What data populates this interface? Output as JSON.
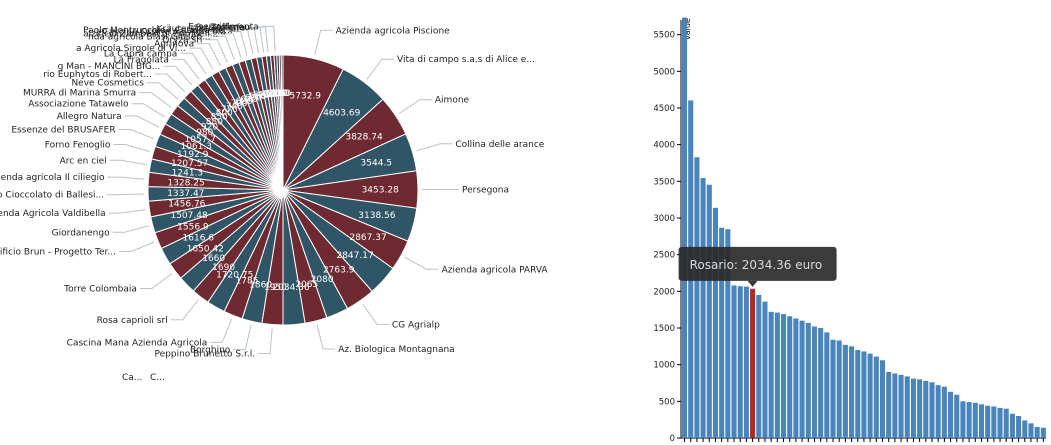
{
  "chart_data": [
    {
      "type": "pie",
      "title": "",
      "colors": [
        "#6e2a30",
        "#2f5566"
      ],
      "slices": [
        {
          "label": "Azienda agricola Piscione",
          "value": 5732.9
        },
        {
          "label": "Vita di campo s.a.s di Alice e...",
          "value": 4603.69
        },
        {
          "label": "Aimone",
          "value": 3828.74
        },
        {
          "label": "Collina delle arance",
          "value": 3544.5
        },
        {
          "label": "Persegona",
          "value": 3453.28
        },
        {
          "label": "",
          "value": 3138.56
        },
        {
          "label": "Azienda agricola PARVA",
          "value": 2867.37
        },
        {
          "label": "",
          "value": 2847.17
        },
        {
          "label": "CG Agrialp",
          "value": 2763.9
        },
        {
          "label": "",
          "value": 2080
        },
        {
          "label": "Az. Biologica Montagnana",
          "value": 2065
        },
        {
          "label": "",
          "value": 2034.36
        },
        {
          "label": "Peppino Brunetto S.r.l.",
          "value": 1950
        },
        {
          "label": "Borghino",
          "value": 1860
        },
        {
          "label": "Cascina Mana Azienda Agricola",
          "value": 1785
        },
        {
          "label": "",
          "value": 1720.75
        },
        {
          "label": "Rosa caprioli srl",
          "value": 1690
        },
        {
          "label": "",
          "value": 1660
        },
        {
          "label": "Torre Colombaia",
          "value": 1650.42
        },
        {
          "label": "",
          "value": 1616.6
        },
        {
          "label": "Pastificio Brun - Progetto Ter...",
          "value": 1556.9
        },
        {
          "label": "Giordanengo",
          "value": 1507.48
        },
        {
          "label": "Azienda Agricola Valdibella",
          "value": 1456.76
        },
        {
          "label": "Ballesio Cioccolato di Ballesi...",
          "value": 1337.47
        },
        {
          "label": "Azienda agricola Il ciliegio",
          "value": 1328.25
        },
        {
          "label": "Arc en ciel",
          "value": 1241.3
        },
        {
          "label": "Forno Fenoglio",
          "value": 1207.57
        },
        {
          "label": "Essenze del BRUSAFER",
          "value": 1192.9
        },
        {
          "label": "Allegro Natura",
          "value": 1061.3
        },
        {
          "label": "Associazione Tatawelo",
          "value": 1057.7
        },
        {
          "label": "MURRA di Marina Smurra",
          "value": 980
        },
        {
          "label": "Neve Cosmetics",
          "value": 920
        },
        {
          "label": "rio Euphytos di Robert...",
          "value": 880
        },
        {
          "label": "g Man - MANCINI BIG...",
          "value": 850
        },
        {
          "label": "La Fragolata",
          "value": 800
        },
        {
          "label": "La Capra campa",
          "value": 770
        },
        {
          "label": "a Agricola Sirgole di Vi...",
          "value": 740
        },
        {
          "label": "Agrinova",
          "value": 700
        },
        {
          "label": "Oryza srl",
          "value": 680
        },
        {
          "label": "nda agricola Blasi Giusep...",
          "value": 640
        },
        {
          "label": "alzificio Zambelli di Zambell...",
          "value": 600
        },
        {
          "label": "Cascine Orsine Az. Agricola",
          "value": 560
        },
        {
          "label": "Paolo Montrucchio ( Cascina de...",
          "value": 520
        },
        {
          "label": "Kräuterschlössl srl",
          "value": 490
        },
        {
          "label": "Mokafe",
          "value": 420
        },
        {
          "label": "Su Zeffanau",
          "value": 380
        },
        {
          "label": "",
          "value": 320
        },
        {
          "label": "Essenzialmenta",
          "value": 260
        },
        {
          "label": "",
          "value": 220
        },
        {
          "label": "",
          "value": 190
        },
        {
          "label": "",
          "value": 160
        }
      ],
      "cut_off_labels": [
        "Ca...",
        "C..."
      ]
    },
    {
      "type": "bar",
      "title": "",
      "ylabel": "value",
      "ylim": [
        0,
        5700
      ],
      "yticks": [
        0,
        500,
        1000,
        1500,
        2000,
        2500,
        3000,
        3500,
        4000,
        4500,
        5000,
        5500
      ],
      "bar_color": "#4a84bd",
      "highlight_color": "#b02a2a",
      "highlight_index": 11,
      "tooltip": "Rosario: 2034.36 euro",
      "values": [
        5732.9,
        4603.69,
        3828.74,
        3544.5,
        3453.28,
        3138.56,
        2867.37,
        2847.17,
        2080,
        2070,
        2065,
        2034.36,
        1950,
        1860,
        1720,
        1710,
        1690,
        1660,
        1630,
        1600,
        1570,
        1520,
        1500,
        1440,
        1340,
        1330,
        1270,
        1250,
        1200,
        1180,
        1150,
        1110,
        1060,
        900,
        880,
        860,
        840,
        810,
        800,
        780,
        760,
        720,
        700,
        630,
        590,
        500,
        490,
        480,
        460,
        440,
        430,
        410,
        400,
        330,
        300,
        240,
        200,
        150,
        140
      ]
    }
  ]
}
